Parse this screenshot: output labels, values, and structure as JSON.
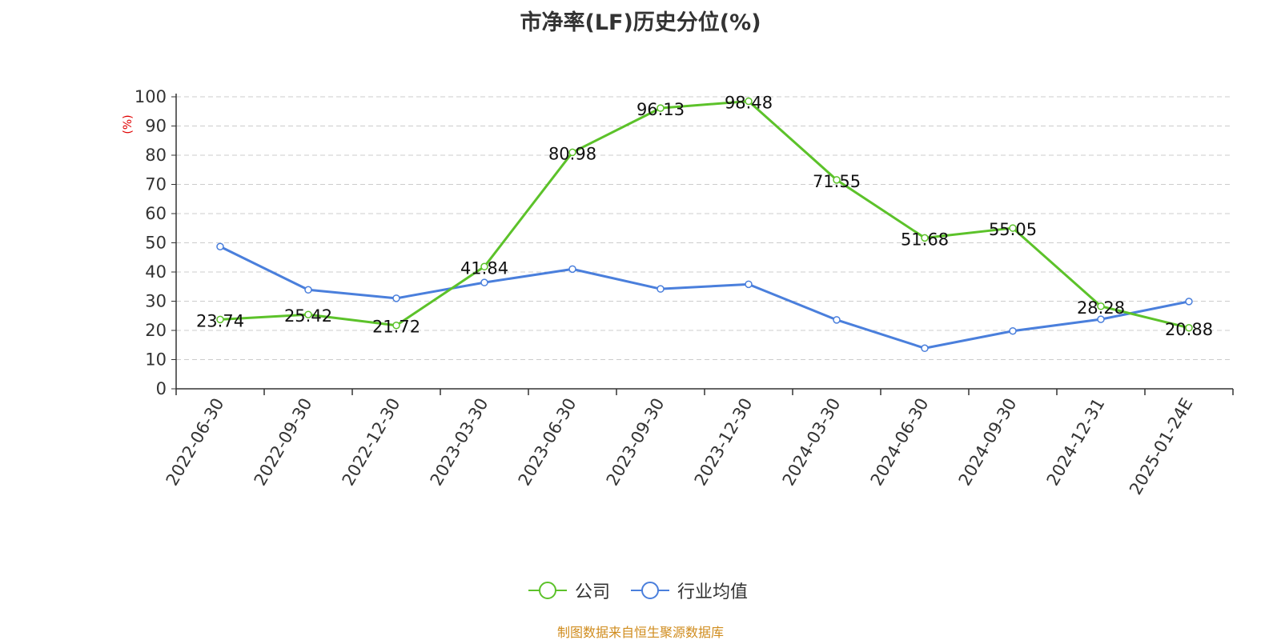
{
  "chart_data": {
    "type": "line",
    "title": "市净率(LF)历史分位(%)",
    "ylabel": "(%)",
    "xlabel": "",
    "categories": [
      "2022-06-30",
      "2022-09-30",
      "2022-12-30",
      "2023-03-30",
      "2023-06-30",
      "2023-09-30",
      "2023-12-30",
      "2024-03-30",
      "2024-06-30",
      "2024-09-30",
      "2024-12-31",
      "2025-01-24E"
    ],
    "ylim": [
      0,
      100
    ],
    "yticks": [
      0,
      10,
      20,
      30,
      40,
      50,
      60,
      70,
      80,
      90,
      100
    ],
    "grid": true,
    "legend_position": "bottom",
    "series": [
      {
        "name": "公司",
        "color": "#5cc22a",
        "show_labels": true,
        "values": [
          23.74,
          25.42,
          21.72,
          41.84,
          80.98,
          96.13,
          98.48,
          71.55,
          51.68,
          55.05,
          28.28,
          20.88
        ],
        "labels": [
          "23.74",
          "25.42",
          "21.72",
          "41.84",
          "80.98",
          "96.13",
          "98.48",
          "71.55",
          "51.68",
          "55.05",
          "28.28",
          "20.88"
        ]
      },
      {
        "name": "行业均值",
        "color": "#4a7fdc",
        "show_labels": false,
        "values": [
          48.7,
          33.9,
          31.0,
          36.4,
          41.0,
          34.2,
          35.8,
          23.6,
          13.9,
          19.8,
          23.8,
          29.9
        ]
      }
    ],
    "source": "制图数据来自恒生聚源数据库"
  }
}
